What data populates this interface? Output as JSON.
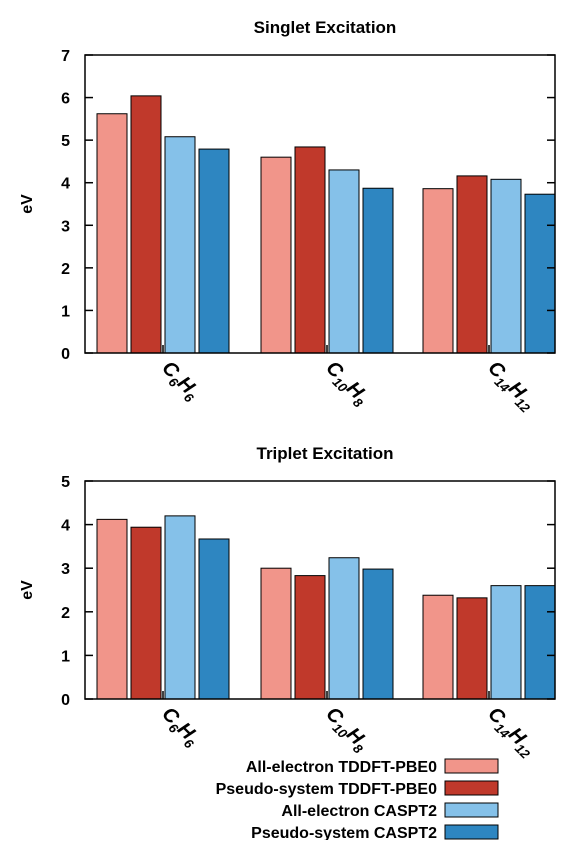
{
  "colors": {
    "all_electron_tddft": "#f1958a",
    "pseudo_system_tddft": "#c0392b",
    "all_electron_caspt2": "#85c1e9",
    "pseudo_system_caspt2": "#2e86c1"
  },
  "legend": {
    "position": "bottom",
    "entries": [
      "All-electron TDDFT-PBE0",
      "Pseudo-system TDDFT-PBE0",
      "All-electron CASPT2",
      "Pseudo-system CASPT2"
    ]
  },
  "chart_data": [
    {
      "type": "bar",
      "title": "Singlet Excitation",
      "xlabel": "",
      "ylabel": "eV",
      "ylim": [
        0,
        7
      ],
      "yticks": [
        "0",
        "1",
        "2",
        "3",
        "4",
        "5",
        "6",
        "7"
      ],
      "grid": false,
      "categories": [
        {
          "base": "C",
          "n1": "6",
          "mid": "H",
          "n2": "6"
        },
        {
          "base": "C",
          "n1": "10",
          "mid": "H",
          "n2": "8"
        },
        {
          "base": "C",
          "n1": "14",
          "mid": "H",
          "n2": "12"
        }
      ],
      "series": [
        {
          "name": "All-electron TDDFT-PBE0",
          "values": [
            5.62,
            4.6,
            3.86
          ]
        },
        {
          "name": "Pseudo-system TDDFT-PBE0",
          "values": [
            6.04,
            4.84,
            4.16
          ]
        },
        {
          "name": "All-electron CASPT2",
          "values": [
            5.08,
            4.3,
            4.08
          ]
        },
        {
          "name": "Pseudo-system CASPT2",
          "values": [
            4.79,
            3.87,
            3.73
          ]
        }
      ]
    },
    {
      "type": "bar",
      "title": "Triplet Excitation",
      "xlabel": "",
      "ylabel": "eV",
      "ylim": [
        0,
        5
      ],
      "yticks": [
        "0",
        "1",
        "2",
        "3",
        "4",
        "5"
      ],
      "grid": false,
      "categories": [
        {
          "base": "C",
          "n1": "6",
          "mid": "H",
          "n2": "6"
        },
        {
          "base": "C",
          "n1": "10",
          "mid": "H",
          "n2": "8"
        },
        {
          "base": "C",
          "n1": "14",
          "mid": "H",
          "n2": "12"
        }
      ],
      "series": [
        {
          "name": "All-electron TDDFT-PBE0",
          "values": [
            4.12,
            3.0,
            2.38
          ]
        },
        {
          "name": "Pseudo-system TDDFT-PBE0",
          "values": [
            3.94,
            2.83,
            2.32
          ]
        },
        {
          "name": "All-electron CASPT2",
          "values": [
            4.2,
            3.24,
            2.6
          ]
        },
        {
          "name": "Pseudo-system CASPT2",
          "values": [
            3.67,
            2.98,
            2.6
          ]
        }
      ]
    }
  ]
}
